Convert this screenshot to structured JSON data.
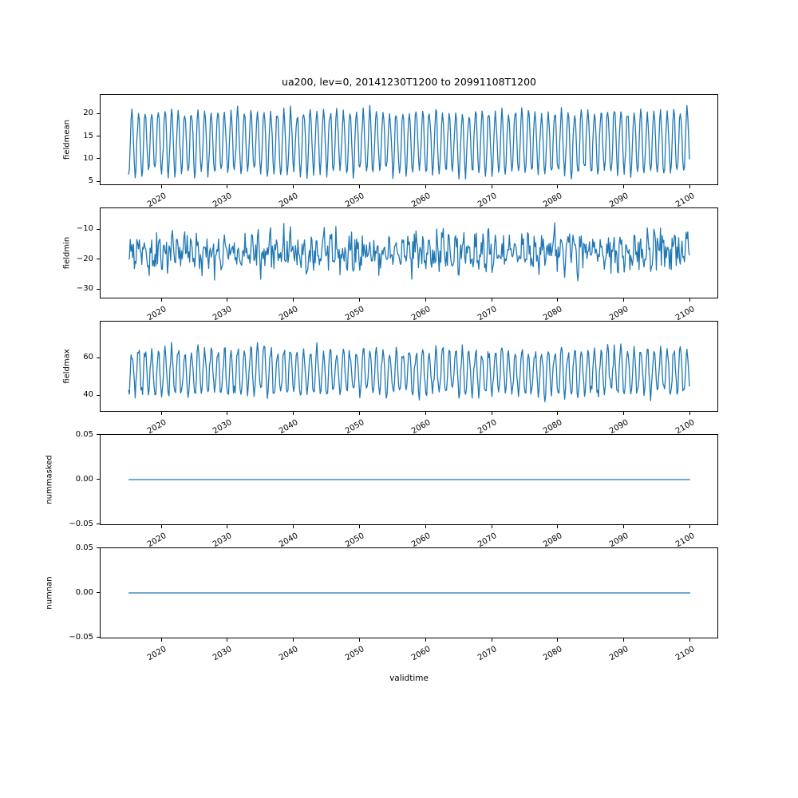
{
  "figure": {
    "title": "ua200, lev=0, 20141230T1200 to 20991108T1200",
    "xlabel": "validtime",
    "line_color": "#1f77b4",
    "spine_color": "#000000",
    "text_color": "#000000",
    "background_color": "#ffffff"
  },
  "chart_data": [
    {
      "type": "line",
      "ylabel": "fieldmean",
      "ylim": [
        4.4,
        24.2
      ],
      "xlim": [
        2010.75,
        2104.1
      ],
      "grid": false,
      "legend": "none",
      "yticks": [
        {
          "value": 20,
          "label": "20"
        },
        {
          "value": 15,
          "label": "15"
        },
        {
          "value": 10,
          "label": "10"
        },
        {
          "value": 5,
          "label": "5"
        }
      ],
      "xticks": [
        {
          "value": 2020,
          "label": "2020"
        },
        {
          "value": 2030,
          "label": "2030"
        },
        {
          "value": 2040,
          "label": "2040"
        },
        {
          "value": 2050,
          "label": "2050"
        },
        {
          "value": 2060,
          "label": "2060"
        },
        {
          "value": 2070,
          "label": "2070"
        },
        {
          "value": 2080,
          "label": "2080"
        },
        {
          "value": 2090,
          "label": "2090"
        },
        {
          "value": 2100,
          "label": "2100"
        }
      ],
      "xtick_rotation_deg": 30,
      "series": {
        "name": "fieldmean",
        "color": "#1f77b4",
        "generator": {
          "t_start": 2014.99,
          "t_end": 2099.85,
          "per_year": 8,
          "mean": 13.8,
          "amp": 6.8,
          "noise": 1.7,
          "min": 5.2,
          "max": 23.4,
          "seed": 101
        }
      }
    },
    {
      "type": "line",
      "ylabel": "fieldmin",
      "ylim": [
        -32.8,
        -2.9
      ],
      "xlim": [
        2010.75,
        2104.1
      ],
      "grid": false,
      "legend": "none",
      "yticks": [
        {
          "value": -10,
          "label": "−10"
        },
        {
          "value": -20,
          "label": "−20"
        },
        {
          "value": -30,
          "label": "−30"
        }
      ],
      "xticks": [
        {
          "value": 2020,
          "label": "2020"
        },
        {
          "value": 2030,
          "label": "2030"
        },
        {
          "value": 2040,
          "label": "2040"
        },
        {
          "value": 2050,
          "label": "2050"
        },
        {
          "value": 2060,
          "label": "2060"
        },
        {
          "value": 2070,
          "label": "2070"
        },
        {
          "value": 2080,
          "label": "2080"
        },
        {
          "value": 2090,
          "label": "2090"
        },
        {
          "value": 2100,
          "label": "2100"
        }
      ],
      "xtick_rotation_deg": 30,
      "series": {
        "name": "fieldmin",
        "color": "#1f77b4",
        "generator": {
          "t_start": 2014.99,
          "t_end": 2099.85,
          "per_year": 8,
          "mean": -17.6,
          "amp": 2.6,
          "noise": 7.5,
          "min": -31.4,
          "max": -4.3,
          "seed": 202
        }
      }
    },
    {
      "type": "line",
      "ylabel": "fieldmax",
      "ylim": [
        31.9,
        79.2
      ],
      "xlim": [
        2010.75,
        2104.1
      ],
      "grid": false,
      "legend": "none",
      "yticks": [
        {
          "value": 60,
          "label": "60"
        },
        {
          "value": 40,
          "label": "40"
        }
      ],
      "xticks": [
        {
          "value": 2020,
          "label": "2020"
        },
        {
          "value": 2030,
          "label": "2030"
        },
        {
          "value": 2040,
          "label": "2040"
        },
        {
          "value": 2050,
          "label": "2050"
        },
        {
          "value": 2060,
          "label": "2060"
        },
        {
          "value": 2070,
          "label": "2070"
        },
        {
          "value": 2080,
          "label": "2080"
        },
        {
          "value": 2090,
          "label": "2090"
        },
        {
          "value": 2100,
          "label": "2100"
        }
      ],
      "xtick_rotation_deg": 30,
      "series": {
        "name": "fieldmax",
        "color": "#1f77b4",
        "generator": {
          "t_start": 2014.99,
          "t_end": 2099.85,
          "per_year": 8,
          "mean": 52.5,
          "amp": 11.5,
          "noise": 4.8,
          "min": 34.5,
          "max": 77.3,
          "seed": 303
        }
      }
    },
    {
      "type": "line",
      "ylabel": "nummasked",
      "ylim": [
        -0.05,
        0.05
      ],
      "xlim": [
        2010.75,
        2104.1
      ],
      "grid": false,
      "legend": "none",
      "yticks": [
        {
          "value": 0.05,
          "label": "0.05"
        },
        {
          "value": 0.0,
          "label": "0.00"
        },
        {
          "value": -0.05,
          "label": "−0.05"
        }
      ],
      "xticks": [
        {
          "value": 2020,
          "label": "2020"
        },
        {
          "value": 2030,
          "label": "2030"
        },
        {
          "value": 2040,
          "label": "2040"
        },
        {
          "value": 2050,
          "label": "2050"
        },
        {
          "value": 2060,
          "label": "2060"
        },
        {
          "value": 2070,
          "label": "2070"
        },
        {
          "value": 2080,
          "label": "2080"
        },
        {
          "value": 2090,
          "label": "2090"
        },
        {
          "value": 2100,
          "label": "2100"
        }
      ],
      "xtick_rotation_deg": 30,
      "series": {
        "name": "nummasked",
        "color": "#1f77b4",
        "generator": {
          "t_start": 2014.99,
          "t_end": 2099.85,
          "per_year": 1,
          "mean": 0,
          "amp": 0,
          "noise": 0,
          "min": 0,
          "max": 0,
          "seed": 404
        }
      }
    },
    {
      "type": "line",
      "ylabel": "numnan",
      "ylim": [
        -0.05,
        0.05
      ],
      "xlim": [
        2010.75,
        2104.1
      ],
      "grid": false,
      "legend": "none",
      "yticks": [
        {
          "value": 0.05,
          "label": "0.05"
        },
        {
          "value": 0.0,
          "label": "0.00"
        },
        {
          "value": -0.05,
          "label": "−0.05"
        }
      ],
      "xticks": [
        {
          "value": 2020,
          "label": "2020"
        },
        {
          "value": 2030,
          "label": "2030"
        },
        {
          "value": 2040,
          "label": "2040"
        },
        {
          "value": 2050,
          "label": "2050"
        },
        {
          "value": 2060,
          "label": "2060"
        },
        {
          "value": 2070,
          "label": "2070"
        },
        {
          "value": 2080,
          "label": "2080"
        },
        {
          "value": 2090,
          "label": "2090"
        },
        {
          "value": 2100,
          "label": "2100"
        }
      ],
      "xtick_rotation_deg": 30,
      "series": {
        "name": "numnan",
        "color": "#1f77b4",
        "generator": {
          "t_start": 2014.99,
          "t_end": 2099.85,
          "per_year": 1,
          "mean": 0,
          "amp": 0,
          "noise": 0,
          "min": 0,
          "max": 0,
          "seed": 505
        }
      }
    }
  ]
}
